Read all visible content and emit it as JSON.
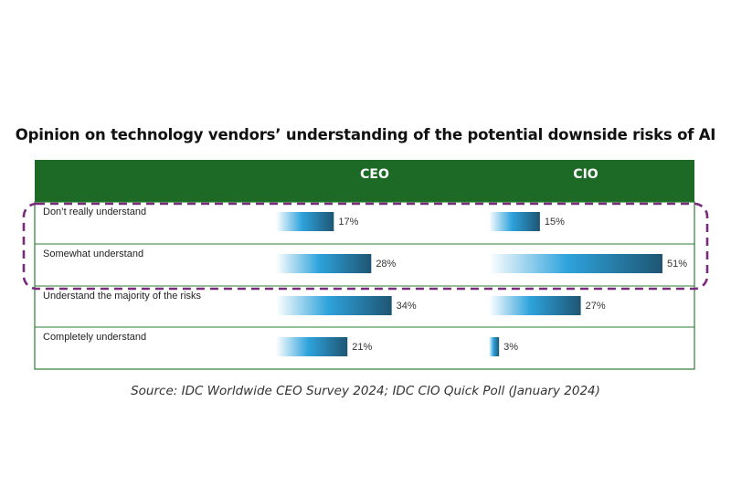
{
  "chart_data": {
    "type": "bar",
    "title": "Opinion on technology vendors’ understanding of the potential downside risks of AI",
    "categories": [
      "Don’t really understand",
      "Somewhat understand",
      "Understand the majority of the risks",
      "Completely understand"
    ],
    "series": [
      {
        "name": "CEO",
        "values": [
          17,
          28,
          34,
          21
        ]
      },
      {
        "name": "CIO",
        "values": [
          15,
          51,
          27,
          3
        ]
      }
    ],
    "value_suffix": "%",
    "xlim": [
      0,
      51
    ],
    "highlighted_categories": [
      "Don’t really understand",
      "Somewhat understand"
    ],
    "colors": {
      "header": "#1c6a25",
      "header_text": "#ffffff",
      "border": "#2e7d32",
      "bar_start": "#ffffff",
      "bar_mid": "#2ea3dc",
      "bar_end": "#1e5573",
      "highlight": "#7a2a7a"
    },
    "grid": false,
    "legend": "header-row"
  },
  "source": "Source: IDC Worldwide CEO Survey 2024; IDC CIO Quick Poll (January 2024)"
}
